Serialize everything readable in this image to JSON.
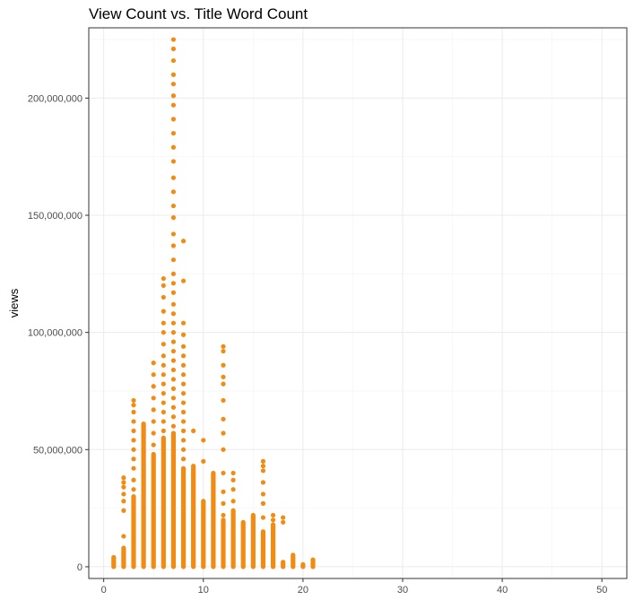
{
  "chart_data": {
    "type": "scatter",
    "title": "View Count vs. Title Word Count",
    "xlabel": "",
    "ylabel": "views",
    "xlim": [
      -1.5,
      52.5
    ],
    "ylim": [
      -5000000,
      230000000
    ],
    "xticks": [
      0,
      10,
      20,
      30,
      40,
      50
    ],
    "yticks": [
      0,
      50000000,
      100000000,
      150000000,
      200000000
    ],
    "ytick_labels": [
      "0",
      "50,000,000",
      "100,000,000",
      "150,000,000",
      "200,000,000"
    ],
    "grid": true,
    "legend": "none",
    "point_color": "#f28b12",
    "columns": [
      {
        "x": 1,
        "max": 4000000,
        "outliers": []
      },
      {
        "x": 2,
        "max": 8000000,
        "outliers": [
          13000000,
          24000000,
          28000000,
          31000000,
          34000000,
          36000000,
          38000000
        ]
      },
      {
        "x": 3,
        "max": 30000000,
        "outliers": [
          33000000,
          37000000,
          42000000,
          46000000,
          50000000,
          54000000,
          58000000,
          62000000,
          66000000,
          69000000,
          71000000
        ]
      },
      {
        "x": 4,
        "max": 61000000,
        "outliers": []
      },
      {
        "x": 5,
        "max": 48000000,
        "outliers": [
          52000000,
          57000000,
          62000000,
          67000000,
          72000000,
          77000000,
          82000000,
          87000000
        ]
      },
      {
        "x": 6,
        "max": 55000000,
        "outliers": [
          58000000,
          62000000,
          66000000,
          70000000,
          74000000,
          78000000,
          82000000,
          86000000,
          90000000,
          95000000,
          100000000,
          104000000,
          109000000,
          115000000,
          120000000,
          123000000
        ]
      },
      {
        "x": 7,
        "max": 57000000,
        "outliers": [
          60000000,
          64000000,
          68000000,
          72000000,
          76000000,
          80000000,
          84000000,
          88000000,
          92000000,
          96000000,
          100000000,
          104000000,
          108000000,
          112000000,
          117000000,
          121000000,
          125000000,
          131000000,
          137000000,
          142000000,
          149000000,
          154000000,
          160000000,
          166000000,
          173000000,
          179000000,
          185000000,
          191000000,
          197000000,
          201000000,
          206000000,
          210000000,
          216000000,
          221000000,
          225000000
        ]
      },
      {
        "x": 8,
        "max": 42000000,
        "outliers": [
          46000000,
          50000000,
          54000000,
          58000000,
          62000000,
          66000000,
          70000000,
          74000000,
          78000000,
          82000000,
          86000000,
          90000000,
          94000000,
          99000000,
          104000000,
          122000000,
          139000000
        ]
      },
      {
        "x": 9,
        "max": 43000000,
        "outliers": [
          58000000
        ]
      },
      {
        "x": 10,
        "max": 28000000,
        "outliers": [
          45000000,
          54000000
        ]
      },
      {
        "x": 11,
        "max": 40000000,
        "outliers": []
      },
      {
        "x": 12,
        "max": 20000000,
        "outliers": [
          22000000,
          27000000,
          32000000,
          40000000,
          50000000,
          57000000,
          63000000,
          71000000,
          78000000,
          81000000,
          86000000,
          92000000,
          94000000
        ]
      },
      {
        "x": 13,
        "max": 24000000,
        "outliers": [
          28000000,
          33000000,
          37000000,
          40000000
        ]
      },
      {
        "x": 14,
        "max": 19000000,
        "outliers": []
      },
      {
        "x": 15,
        "max": 22000000,
        "outliers": []
      },
      {
        "x": 16,
        "max": 15000000,
        "outliers": [
          21000000,
          27000000,
          31000000,
          36000000,
          41000000,
          43000000,
          45000000
        ]
      },
      {
        "x": 17,
        "max": 18000000,
        "outliers": [
          20000000,
          22000000
        ]
      },
      {
        "x": 18,
        "max": 2000000,
        "outliers": [
          19000000,
          21000000
        ]
      },
      {
        "x": 19,
        "max": 5000000,
        "outliers": []
      },
      {
        "x": 20,
        "max": 1000000,
        "outliers": []
      },
      {
        "x": 21,
        "max": 3000000,
        "outliers": []
      }
    ]
  }
}
